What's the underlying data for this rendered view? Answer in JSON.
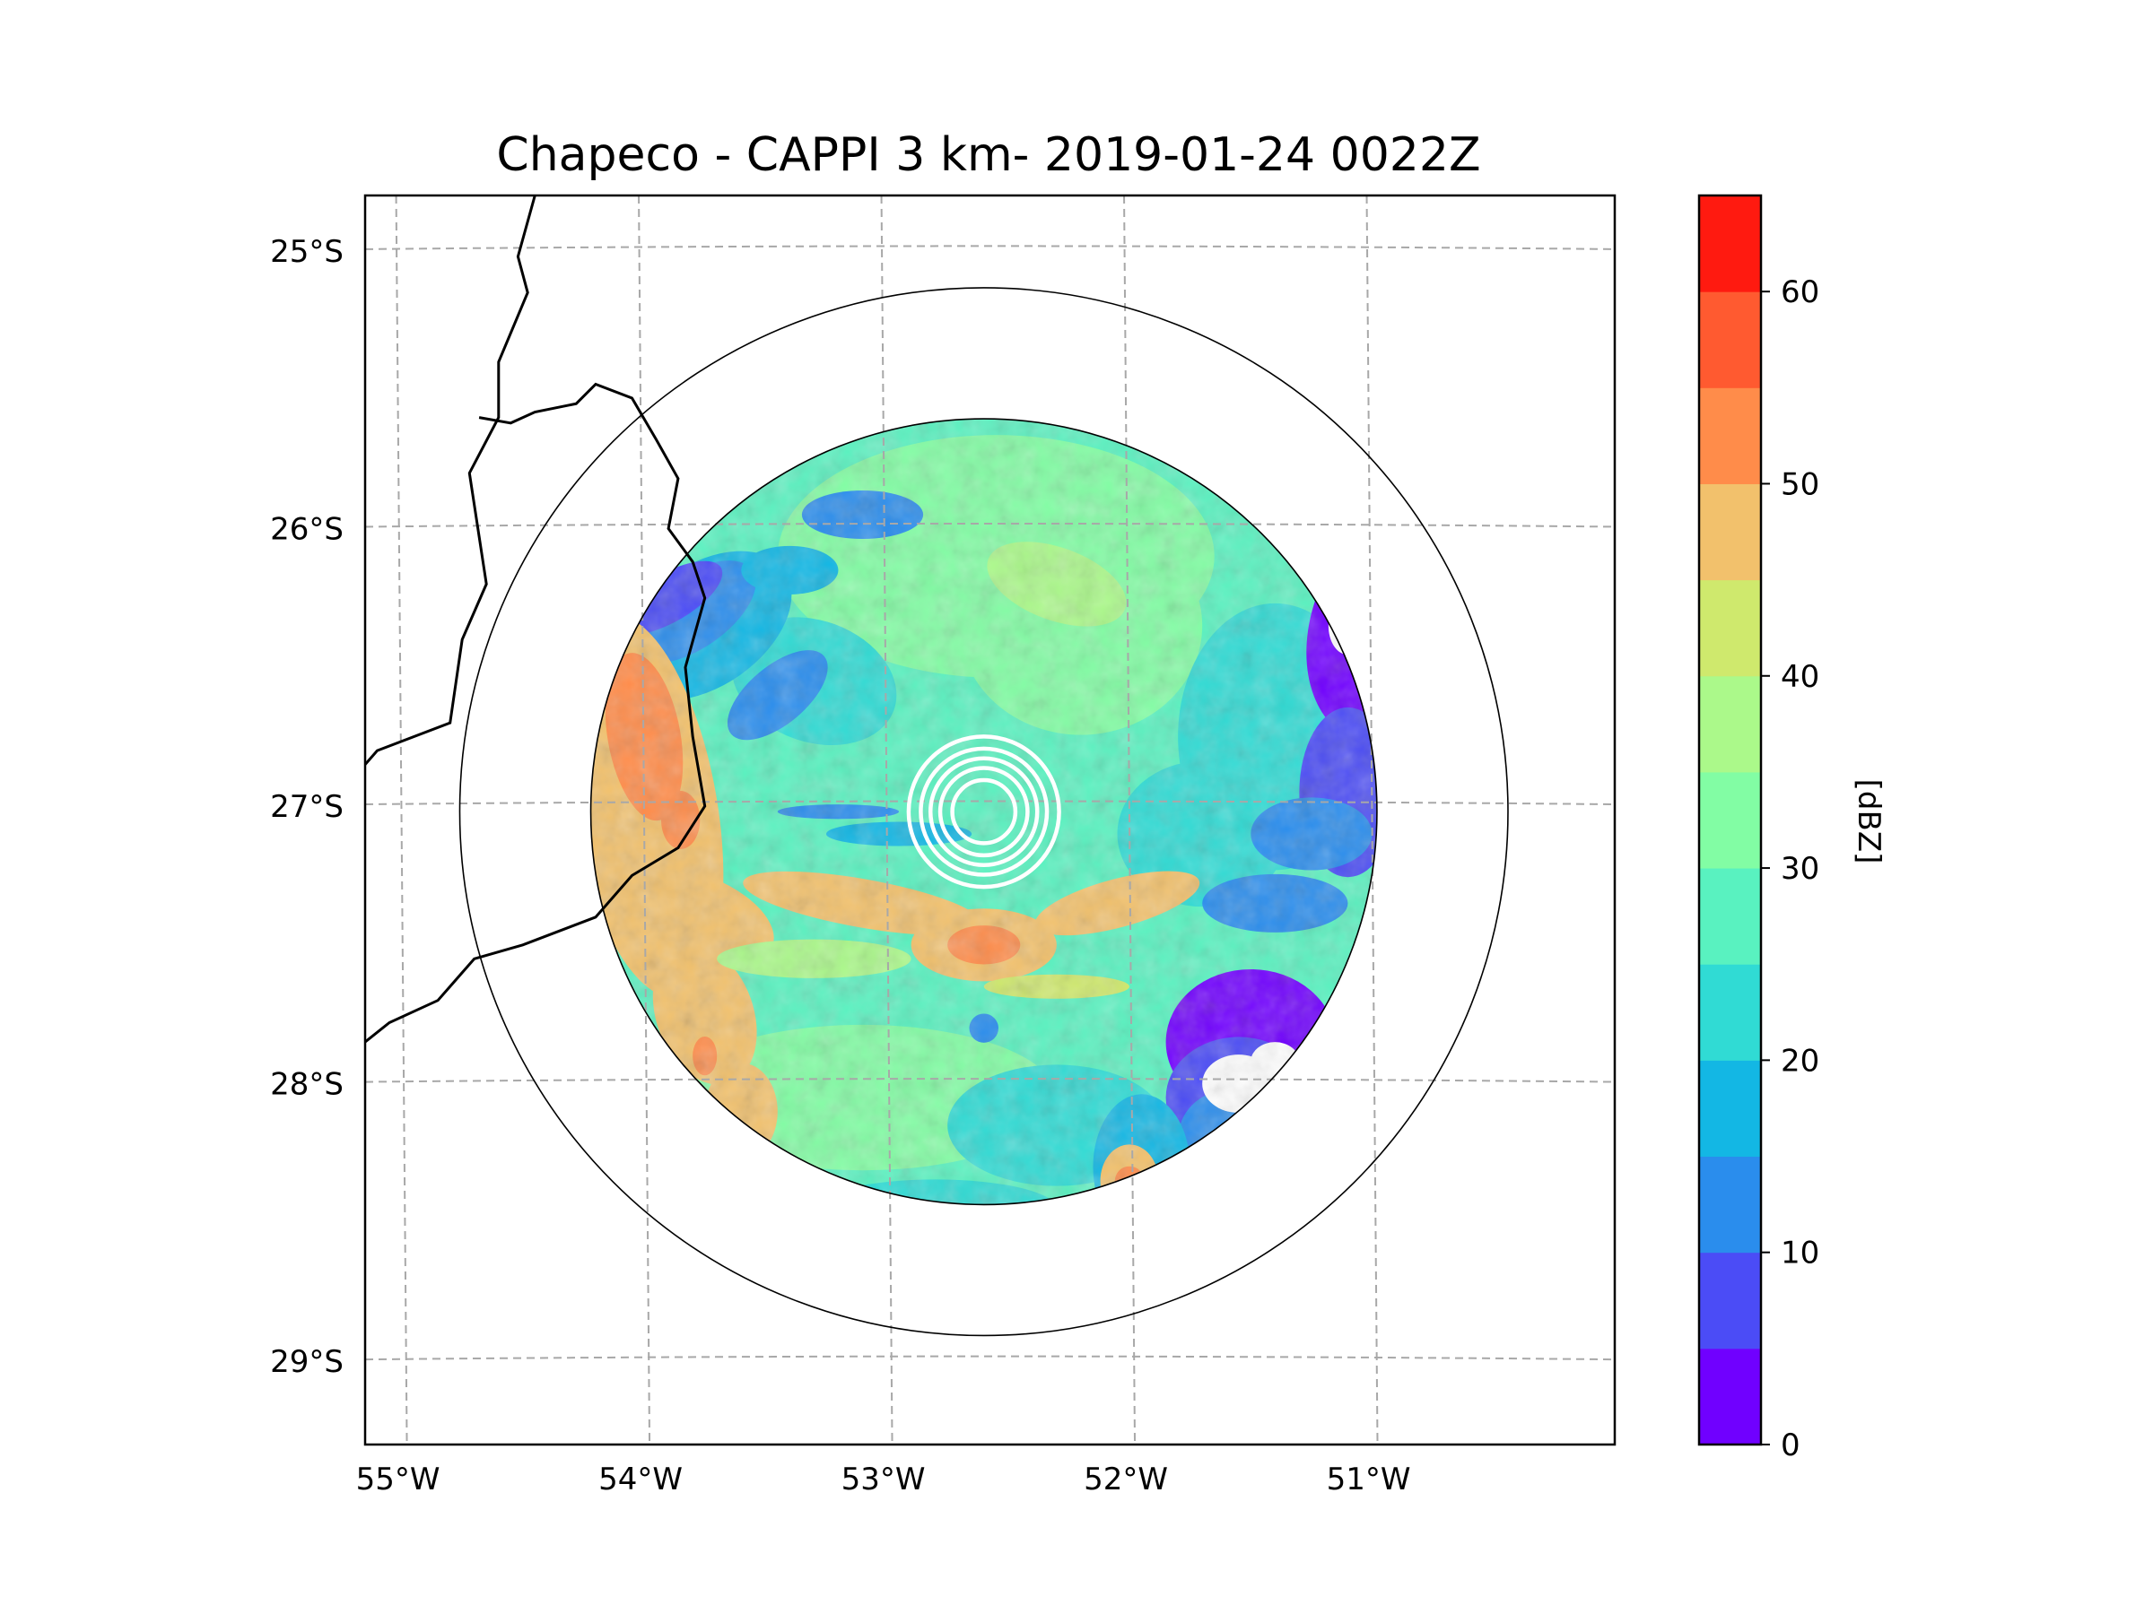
{
  "chart_data": {
    "type": "heatmap",
    "title": "Chapeco - CAPPI 3 km- 2019-01-24 0022Z",
    "radar_site": "Chapeco",
    "product": "CAPPI 3 km",
    "datetime": "2019-01-24 0022Z",
    "map": {
      "lon_range": [
        -55.15,
        -50.0
      ],
      "lat_range": [
        -29.3,
        -24.8
      ],
      "lon_ticks": [
        -55,
        -54,
        -53,
        -52,
        -51
      ],
      "lon_tick_labels": [
        "55°W",
        "54°W",
        "53°W",
        "52°W",
        "51°W"
      ],
      "lat_ticks": [
        -25,
        -26,
        -27,
        -28,
        -29
      ],
      "lat_tick_labels": [
        "25°S",
        "26°S",
        "27°S",
        "28°S",
        "29°S"
      ],
      "gridlines": true,
      "radar_center": {
        "lon": -52.6,
        "lat": -27.02
      },
      "data_range_rings_deg": [
        1.62,
        2.16
      ],
      "clutter_rings_deg": [
        0.13,
        0.18,
        0.22,
        0.26,
        0.31
      ],
      "boundaries": [
        {
          "name": "Argentina/Paraguay border",
          "points": [
            [
              -54.45,
              -24.8
            ],
            [
              -54.52,
              -25.02
            ],
            [
              -54.48,
              -25.15
            ],
            [
              -54.6,
              -25.4
            ],
            [
              -54.6,
              -25.6
            ],
            [
              -54.72,
              -25.8
            ],
            [
              -54.65,
              -26.2
            ],
            [
              -54.75,
              -26.4
            ],
            [
              -54.8,
              -26.7
            ],
            [
              -55.1,
              -26.8
            ],
            [
              -55.15,
              -26.85
            ]
          ]
        },
        {
          "name": "Misiones/Brazil border",
          "points": [
            [
              -54.68,
              -25.6
            ],
            [
              -54.55,
              -25.62
            ],
            [
              -54.45,
              -25.58
            ],
            [
              -54.28,
              -25.55
            ],
            [
              -54.2,
              -25.48
            ],
            [
              -54.05,
              -25.53
            ],
            [
              -53.95,
              -25.68
            ],
            [
              -53.86,
              -25.82
            ],
            [
              -53.9,
              -26.0
            ],
            [
              -53.8,
              -26.12
            ],
            [
              -53.75,
              -26.25
            ],
            [
              -53.83,
              -26.5
            ],
            [
              -53.8,
              -26.75
            ],
            [
              -53.75,
              -27.0
            ],
            [
              -53.86,
              -27.15
            ],
            [
              -54.05,
              -27.25
            ],
            [
              -54.2,
              -27.4
            ],
            [
              -54.35,
              -27.45
            ],
            [
              -54.5,
              -27.5
            ],
            [
              -54.7,
              -27.55
            ],
            [
              -54.85,
              -27.7
            ],
            [
              -55.05,
              -27.78
            ],
            [
              -55.15,
              -27.85
            ]
          ]
        }
      ]
    },
    "colorbar": {
      "label": "[dBZ]",
      "min": 0,
      "max": 65,
      "step": 5,
      "ticks": [
        0,
        10,
        20,
        30,
        40,
        50,
        60
      ],
      "colors": [
        "#7000ff",
        "#4b4cf6",
        "#2a8ded",
        "#13b7e4",
        "#30dbd4",
        "#59f2c0",
        "#82fda4",
        "#abf98a",
        "#cfe96d",
        "#f2c16c",
        "#ff8c4a",
        "#ff5a30",
        "#ff1a10"
      ]
    }
  }
}
